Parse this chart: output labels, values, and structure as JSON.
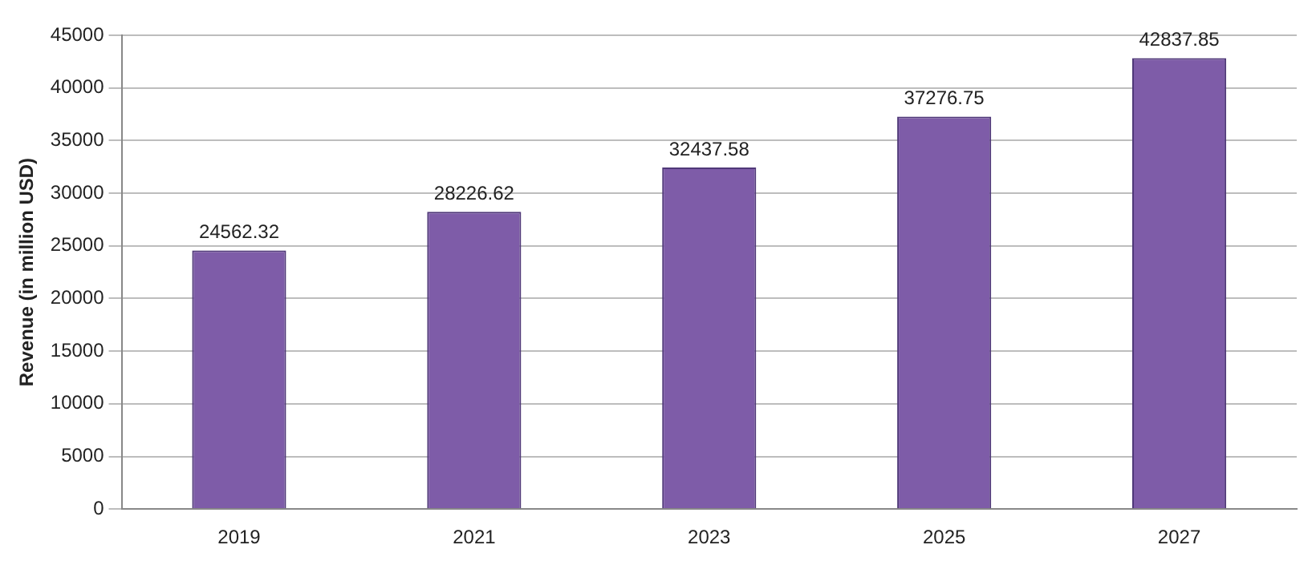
{
  "chart_data": {
    "type": "bar",
    "ylabel": "Revenue (in million USD)",
    "categories": [
      "2019",
      "2021",
      "2023",
      "2025",
      "2027"
    ],
    "values": [
      24562.32,
      28226.62,
      32437.58,
      37276.75,
      42837.85
    ],
    "color": "#7e5ca8",
    "ylim": [
      0,
      45000
    ],
    "yticks": [
      0,
      5000,
      10000,
      15000,
      20000,
      25000,
      30000,
      35000,
      40000,
      45000
    ],
    "grid": "y",
    "data_labels": true
  }
}
